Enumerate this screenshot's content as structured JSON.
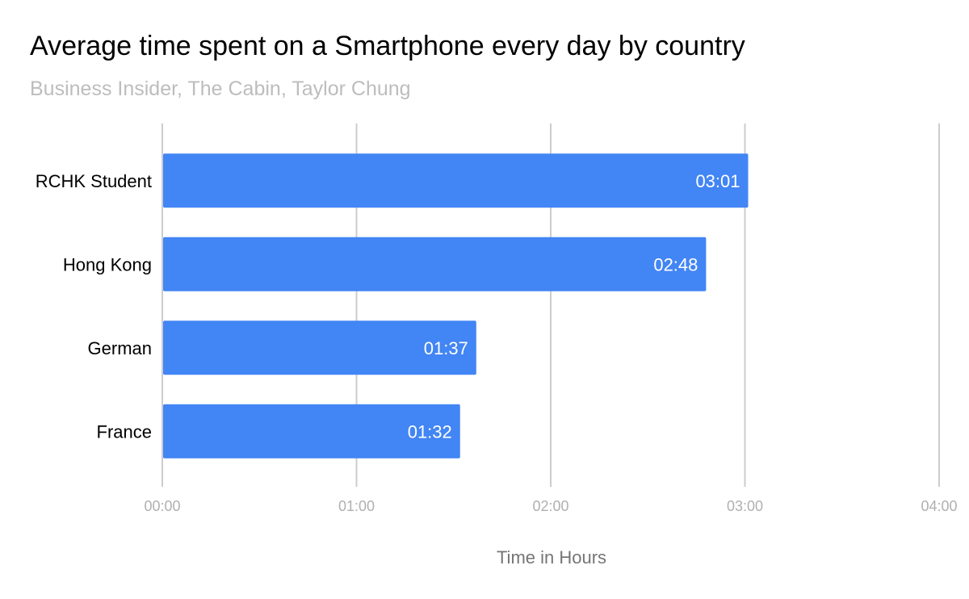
{
  "chart_data": {
    "type": "bar",
    "orientation": "horizontal",
    "title": "Average time spent on a Smartphone every day by country",
    "subtitle": "Business Insider, The Cabin, Taylor Chung",
    "xlabel": "Time in Hours",
    "ylabel": "",
    "value_unit": "minutes",
    "categories": [
      "RCHK Student",
      "Hong Kong",
      "German",
      "France"
    ],
    "values": [
      181,
      168,
      97,
      92
    ],
    "data_labels": [
      "03:01",
      "02:48",
      "01:37",
      "01:32"
    ],
    "xlim": [
      0,
      240
    ],
    "x_ticks": [
      0,
      60,
      120,
      180,
      240
    ],
    "x_tick_labels": [
      "00:00",
      "01:00",
      "02:00",
      "03:00",
      "04:00"
    ],
    "grid": true,
    "legend": "none",
    "colors": {
      "bar": "#4285f4",
      "grid": "#cccccc"
    }
  }
}
